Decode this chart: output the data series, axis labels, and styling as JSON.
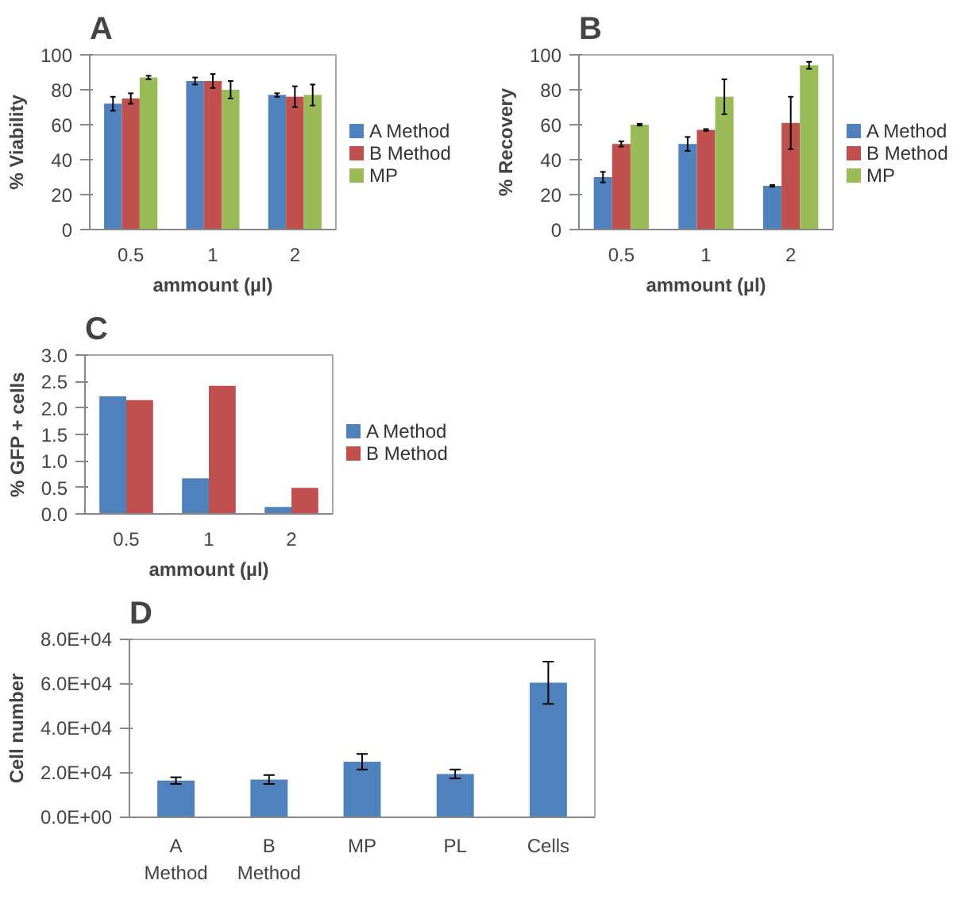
{
  "chart_data": [
    {
      "type": "bar",
      "title": "A",
      "xlabel": "ammount (µl)",
      "ylabel": "% Viability",
      "categories": [
        "0.5",
        "1",
        "2"
      ],
      "series": [
        {
          "name": "A Method",
          "color": "#4f81bd",
          "values": [
            72,
            85,
            77
          ],
          "errors": [
            4,
            2,
            1
          ]
        },
        {
          "name": "B Method",
          "color": "#c0504d",
          "values": [
            75,
            85,
            76
          ],
          "errors": [
            3,
            4,
            6
          ]
        },
        {
          "name": "MP",
          "color": "#9bbb59",
          "values": [
            87,
            80,
            77
          ],
          "errors": [
            1,
            5,
            6
          ]
        }
      ],
      "ylim": [
        0,
        100
      ],
      "yticks": [
        0,
        20,
        40,
        60,
        80,
        100
      ],
      "legend": "right",
      "grid": false
    },
    {
      "type": "bar",
      "title": "B",
      "xlabel": "ammount (µl)",
      "ylabel": "% Recovery",
      "categories": [
        "0.5",
        "1",
        "2"
      ],
      "series": [
        {
          "name": "A Method",
          "color": "#4f81bd",
          "values": [
            30,
            49,
            25
          ],
          "errors": [
            3,
            4,
            0.5
          ]
        },
        {
          "name": "B Method",
          "color": "#c0504d",
          "values": [
            49,
            57,
            61
          ],
          "errors": [
            1.5,
            0.5,
            15
          ]
        },
        {
          "name": "MP",
          "color": "#9bbb59",
          "values": [
            60,
            76,
            94
          ],
          "errors": [
            0.5,
            10,
            2
          ]
        }
      ],
      "ylim": [
        0,
        100
      ],
      "yticks": [
        0,
        20,
        40,
        60,
        80,
        100
      ],
      "legend": "right",
      "grid": false
    },
    {
      "type": "bar",
      "title": "C",
      "xlabel": "ammount (µl)",
      "ylabel": "% GFP + cells",
      "categories": [
        "0.5",
        "1",
        "2"
      ],
      "series": [
        {
          "name": "A Method",
          "color": "#4f81bd",
          "values": [
            2.22,
            0.67,
            0.13
          ]
        },
        {
          "name": "B Method",
          "color": "#c0504d",
          "values": [
            2.15,
            2.42,
            0.49
          ]
        }
      ],
      "ylim": [
        0,
        3
      ],
      "yticks": [
        {
          "value": 0,
          "label": "0.0"
        },
        {
          "value": 0.5,
          "label": "0.5"
        },
        {
          "value": 1,
          "label": "1.0"
        },
        {
          "value": 1.5,
          "label": "1.5"
        },
        {
          "value": 2,
          "label": "2.0"
        },
        {
          "value": 2.5,
          "label": "2.5"
        },
        {
          "value": 3,
          "label": "3.0"
        }
      ],
      "legend": "right",
      "grid": false
    },
    {
      "type": "bar",
      "title": "D",
      "ylabel": "Cell number",
      "categories": [
        "A Method",
        "B Method",
        "MP",
        "PL",
        "Cells"
      ],
      "series": [
        {
          "color": "#4f81bd",
          "values": [
            16500,
            17000,
            25000,
            19500,
            60500
          ],
          "errors": [
            1500,
            2000,
            3500,
            2000,
            9500
          ]
        }
      ],
      "ylim": [
        0,
        80000
      ],
      "yticks": [
        {
          "value": 0,
          "label": "0.0E+00"
        },
        {
          "value": 20000,
          "label": "2.0E+04"
        },
        {
          "value": 40000,
          "label": "4.0E+04"
        },
        {
          "value": 60000,
          "label": "6.0E+04"
        },
        {
          "value": 80000,
          "label": "8.0E+04"
        }
      ],
      "legend": false,
      "grid": false
    }
  ]
}
